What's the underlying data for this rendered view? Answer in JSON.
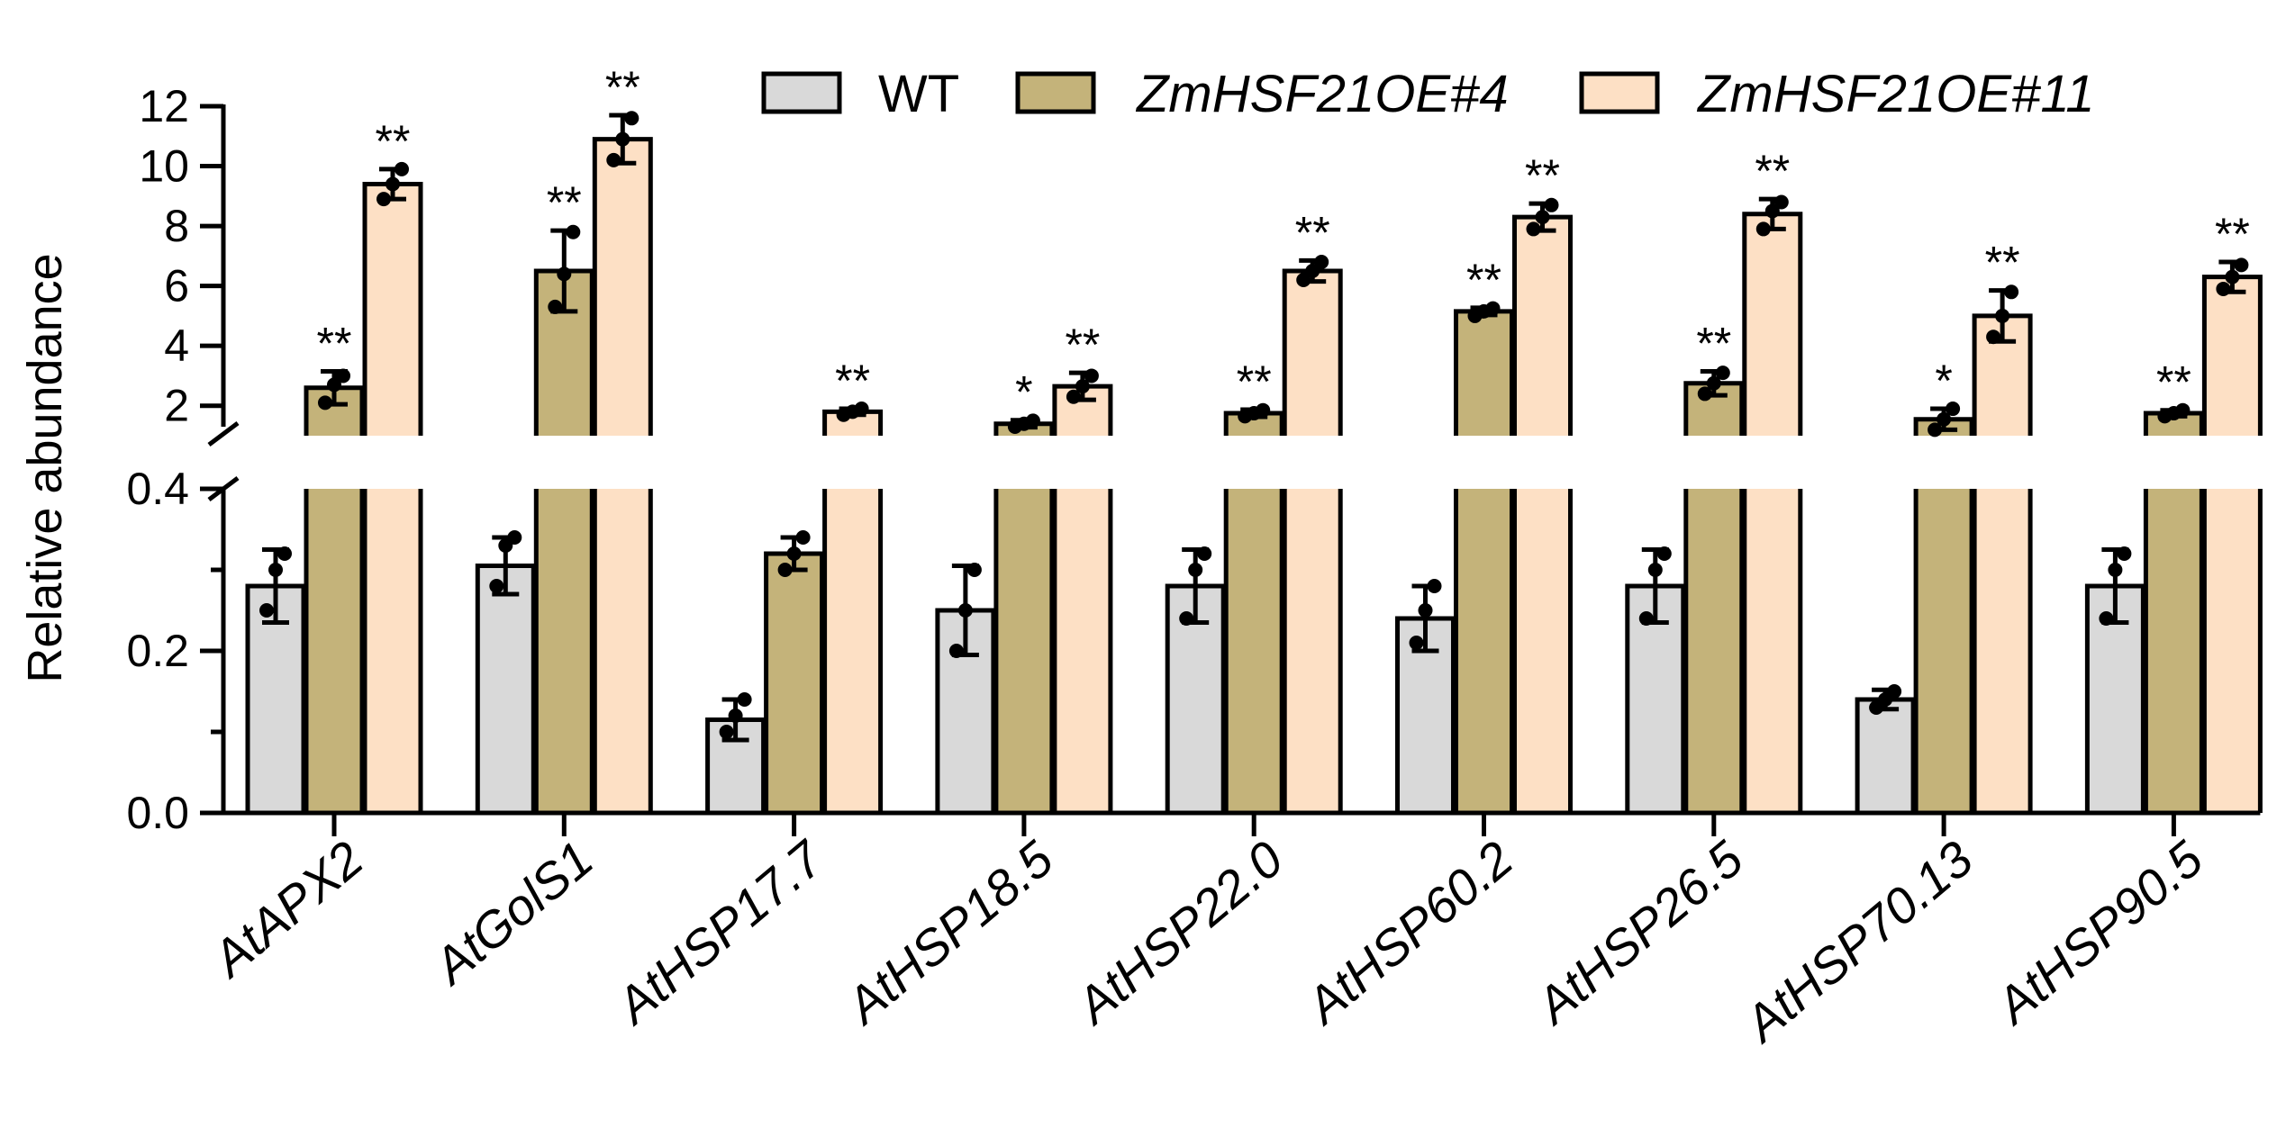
{
  "chart_data": {
    "type": "bar",
    "ylabel": "Relative abundance",
    "categories": [
      "AtAPX2",
      "AtGolS1",
      "AtHSP17.7",
      "AtHSP18.5",
      "AtHSP22.0",
      "AtHSP60.2",
      "AtHSP26.5",
      "AtHSP70.13",
      "AtHSP90.5"
    ],
    "series": [
      {
        "name": "WT",
        "italic": false,
        "color": "#d9d9d9",
        "values": [
          0.28,
          0.305,
          0.115,
          0.25,
          0.28,
          0.24,
          0.28,
          0.14,
          0.28
        ],
        "errors": [
          0.045,
          0.035,
          0.025,
          0.055,
          0.045,
          0.04,
          0.045,
          0.012,
          0.045
        ],
        "points": [
          [
            0.25,
            0.32,
            0.3
          ],
          [
            0.28,
            0.34,
            0.33
          ],
          [
            0.1,
            0.14,
            0.12
          ],
          [
            0.2,
            0.3,
            0.25
          ],
          [
            0.24,
            0.32,
            0.3
          ],
          [
            0.21,
            0.28,
            0.25
          ],
          [
            0.24,
            0.32,
            0.3
          ],
          [
            0.13,
            0.15,
            0.14
          ],
          [
            0.24,
            0.32,
            0.3
          ]
        ],
        "significance": [
          "",
          "",
          "",
          "",
          "",
          "",
          "",
          "",
          ""
        ]
      },
      {
        "name": "ZmHSF21OE#4",
        "italic": true,
        "color": "#c4b37a",
        "values": [
          2.6,
          6.5,
          0.32,
          1.4,
          1.75,
          5.15,
          2.75,
          1.55,
          1.75
        ],
        "errors": [
          0.55,
          1.35,
          0.02,
          0.12,
          0.12,
          0.12,
          0.4,
          0.35,
          0.1
        ],
        "points": [
          [
            2.1,
            3.0,
            2.7
          ],
          [
            5.3,
            7.8,
            6.4
          ],
          [
            0.3,
            0.34,
            0.32
          ],
          [
            1.3,
            1.5,
            1.4
          ],
          [
            1.65,
            1.85,
            1.75
          ],
          [
            5.0,
            5.25,
            5.15
          ],
          [
            2.4,
            3.1,
            2.75
          ],
          [
            1.2,
            1.9,
            1.55
          ],
          [
            1.65,
            1.85,
            1.75
          ]
        ],
        "significance": [
          "**",
          "**",
          "",
          "*",
          "**",
          "**",
          "**",
          "*",
          "**"
        ]
      },
      {
        "name": "ZmHSF21OE#11",
        "italic": true,
        "color": "#fde0c5",
        "values": [
          9.4,
          10.9,
          1.8,
          2.65,
          6.5,
          8.3,
          8.4,
          5.0,
          6.3
        ],
        "errors": [
          0.5,
          0.8,
          0.1,
          0.45,
          0.35,
          0.45,
          0.5,
          0.85,
          0.5
        ],
        "points": [
          [
            8.9,
            9.9,
            9.4
          ],
          [
            10.2,
            11.6,
            10.9
          ],
          [
            1.7,
            1.9,
            1.8
          ],
          [
            2.3,
            3.0,
            2.65
          ],
          [
            6.2,
            6.8,
            6.5
          ],
          [
            7.9,
            8.7,
            8.3
          ],
          [
            7.9,
            8.8,
            8.5
          ],
          [
            4.3,
            5.8,
            5.0
          ],
          [
            5.9,
            6.7,
            6.3
          ]
        ],
        "significance": [
          "**",
          "**",
          "**",
          "**",
          "**",
          "**",
          "**",
          "**",
          "**"
        ]
      }
    ],
    "axis": {
      "upper_ylim": [
        1.0,
        12.0
      ],
      "upper_ticks": [
        "2",
        "4",
        "6",
        "8",
        "10",
        "12"
      ],
      "upper_tick_values": [
        2,
        4,
        6,
        8,
        10,
        12
      ],
      "lower_ylim": [
        0.0,
        0.4
      ],
      "lower_ticks": [
        "0.0",
        "0.2",
        "0.4"
      ],
      "lower_tick_values": [
        0.0,
        0.2,
        0.4
      ],
      "lower_minor_ticks": [
        0.1,
        0.3
      ],
      "broken": true
    },
    "legend": {
      "placement": "top-right"
    }
  }
}
